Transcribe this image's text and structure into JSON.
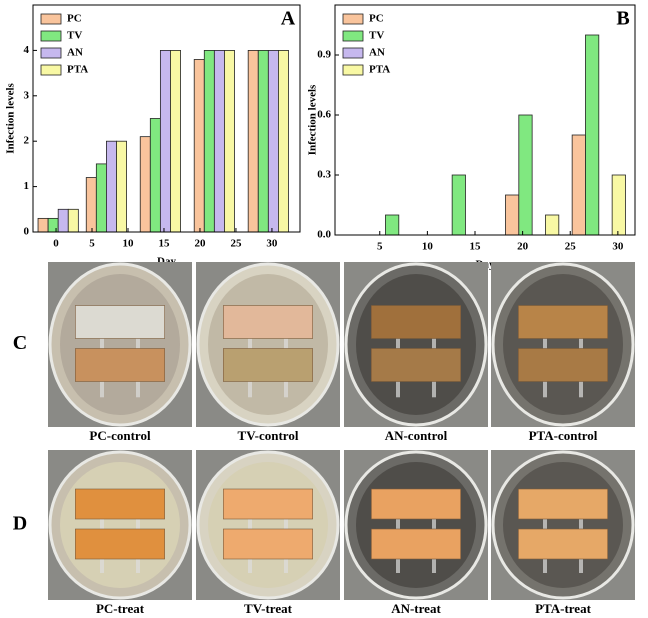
{
  "chart_data": [
    {
      "type": "bar",
      "panel_label": "A",
      "xlabel": "Day",
      "ylabel": "Infection levels",
      "x": [
        0.3,
        7,
        14.5,
        22,
        29.5
      ],
      "series": [
        {
          "name": "PC",
          "color": "#f9c49c",
          "values": [
            0.3,
            1.2,
            2.1,
            3.8,
            4
          ]
        },
        {
          "name": "TV",
          "color": "#80e880",
          "values": [
            0.3,
            1.5,
            2.5,
            4,
            4
          ]
        },
        {
          "name": "AN",
          "color": "#c6b8ee",
          "values": [
            0.5,
            2,
            4,
            4,
            4
          ]
        },
        {
          "name": "PTA",
          "color": "#f8f8a4",
          "values": [
            0.5,
            2,
            4,
            4,
            4
          ]
        }
      ],
      "xlim": [
        -3.2,
        33.9
      ],
      "xticks": [
        0,
        5,
        10,
        15,
        20,
        25,
        30
      ],
      "ylim": [
        0,
        5
      ],
      "yticks": [
        0,
        1,
        2,
        3,
        4
      ],
      "legend": "upper left"
    },
    {
      "type": "bar",
      "panel_label": "B",
      "xlabel": "Day",
      "ylabel": "Infection levels",
      "x": [
        7,
        14,
        21,
        28
      ],
      "series": [
        {
          "name": "PC",
          "color": "#f9c49c",
          "values": [
            0,
            0,
            0.2,
            0.5
          ]
        },
        {
          "name": "TV",
          "color": "#80e880",
          "values": [
            0.1,
            0.3,
            0.6,
            1.0
          ]
        },
        {
          "name": "AN",
          "color": "#c6b8ee",
          "values": [
            0,
            0,
            0,
            0
          ]
        },
        {
          "name": "PTA",
          "color": "#f8f8a4",
          "values": [
            0,
            0,
            0.1,
            0.3
          ]
        }
      ],
      "xlim": [
        0.3,
        31.8
      ],
      "xticks": [
        5,
        10,
        15,
        20,
        25,
        30
      ],
      "ylim": [
        0,
        1.15
      ],
      "yticks": [
        {
          "value": 0,
          "label": "0.0"
        },
        0.3,
        0.6,
        0.9
      ],
      "legend": "upper left"
    }
  ],
  "photos": {
    "row_labels": [
      "C",
      "D"
    ],
    "captions": [
      [
        "PC-control",
        "TV-control",
        "AN-control",
        "PTA-control"
      ],
      [
        "PC-treat",
        "TV-treat",
        "AN-treat",
        "PTA-treat"
      ]
    ]
  }
}
